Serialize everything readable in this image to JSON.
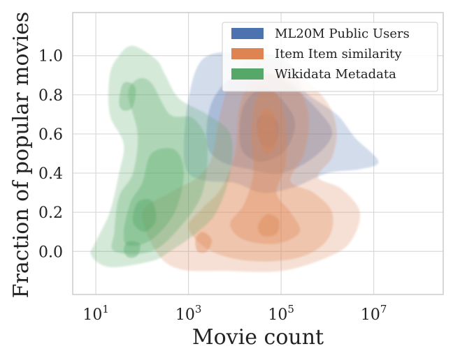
{
  "chart_data": {
    "type": "kde-contour",
    "xlabel": "Movie count",
    "ylabel": "Fraction of popular movies",
    "x_scale": "log10",
    "xlim_log10": [
      0.5,
      8.5
    ],
    "ylim": [
      -0.22,
      1.22
    ],
    "grid": true,
    "legend_position": "top-right",
    "x_ticks": [
      {
        "base": "10",
        "exp": "1",
        "value_log10": 1
      },
      {
        "base": "10",
        "exp": "3",
        "value_log10": 3
      },
      {
        "base": "10",
        "exp": "5",
        "value_log10": 5
      },
      {
        "base": "10",
        "exp": "7",
        "value_log10": 7
      }
    ],
    "x_gridlines_log10": [
      1,
      3,
      5,
      7
    ],
    "y_ticks": [
      {
        "label": "0.0",
        "value": 0.0
      },
      {
        "label": "0.2",
        "value": 0.2
      },
      {
        "label": "0.4",
        "value": 0.4
      },
      {
        "label": "0.6",
        "value": 0.6
      },
      {
        "label": "0.8",
        "value": 0.8
      },
      {
        "label": "1.0",
        "value": 1.0
      }
    ],
    "series": [
      {
        "name": "ML20M Public Users",
        "color": "#4C72B0",
        "peaks": [
          {
            "x_log10": 4.7,
            "y": 0.6
          }
        ],
        "levels": [
          {
            "opacity": 0.25,
            "outline": [
              [
                2.9,
                0.52
              ],
              [
                3.0,
                0.78
              ],
              [
                3.3,
                0.98
              ],
              [
                4.0,
                1.02
              ],
              [
                4.9,
                1.0
              ],
              [
                5.3,
                0.93
              ],
              [
                5.5,
                0.82
              ],
              [
                6.2,
                0.7
              ],
              [
                6.6,
                0.58
              ],
              [
                7.1,
                0.46
              ],
              [
                6.7,
                0.42
              ],
              [
                6.0,
                0.4
              ],
              [
                5.3,
                0.33
              ],
              [
                4.6,
                0.3
              ],
              [
                4.0,
                0.35
              ],
              [
                3.4,
                0.36
              ],
              [
                3.0,
                0.4
              ]
            ]
          },
          {
            "opacity": 0.3,
            "outline": [
              [
                3.4,
                0.55
              ],
              [
                3.5,
                0.76
              ],
              [
                4.0,
                0.9
              ],
              [
                4.6,
                0.92
              ],
              [
                5.2,
                0.85
              ],
              [
                5.8,
                0.72
              ],
              [
                6.1,
                0.6
              ],
              [
                5.7,
                0.48
              ],
              [
                5.0,
                0.4
              ],
              [
                4.3,
                0.42
              ],
              [
                3.7,
                0.46
              ]
            ]
          },
          {
            "opacity": 0.35,
            "outline": [
              [
                4.1,
                0.6
              ],
              [
                4.2,
                0.75
              ],
              [
                4.6,
                0.84
              ],
              [
                5.0,
                0.78
              ],
              [
                5.3,
                0.66
              ],
              [
                5.1,
                0.52
              ],
              [
                4.6,
                0.46
              ],
              [
                4.2,
                0.5
              ]
            ]
          },
          {
            "opacity": 0.4,
            "outline": [
              [
                4.5,
                0.6
              ],
              [
                4.5,
                0.68
              ],
              [
                4.75,
                0.7
              ],
              [
                4.95,
                0.64
              ],
              [
                4.85,
                0.54
              ],
              [
                4.6,
                0.54
              ]
            ]
          }
        ]
      },
      {
        "name": "Item Item similarity",
        "color": "#DD8452",
        "peaks": [
          {
            "x_log10": 4.8,
            "y": 0.12
          },
          {
            "x_log10": 4.7,
            "y": 0.6
          }
        ],
        "levels": [
          {
            "opacity": 0.25,
            "outline": [
              [
                2.0,
                0.2
              ],
              [
                2.3,
                0.0
              ],
              [
                2.8,
                -0.09
              ],
              [
                3.8,
                -0.1
              ],
              [
                5.0,
                -0.1
              ],
              [
                6.0,
                -0.03
              ],
              [
                6.5,
                0.05
              ],
              [
                6.7,
                0.2
              ],
              [
                6.3,
                0.32
              ],
              [
                5.8,
                0.38
              ],
              [
                6.1,
                0.48
              ],
              [
                6.2,
                0.62
              ],
              [
                6.0,
                0.76
              ],
              [
                5.5,
                0.88
              ],
              [
                5.0,
                0.97
              ],
              [
                4.5,
                0.98
              ],
              [
                4.0,
                0.92
              ],
              [
                3.7,
                0.72
              ],
              [
                3.5,
                0.48
              ],
              [
                3.2,
                0.38
              ],
              [
                2.6,
                0.3
              ]
            ]
          },
          {
            "opacity": 0.3,
            "outline": [
              [
                3.0,
                0.12
              ],
              [
                3.5,
                0.0
              ],
              [
                4.4,
                -0.05
              ],
              [
                5.4,
                -0.03
              ],
              [
                6.0,
                0.06
              ],
              [
                6.1,
                0.2
              ],
              [
                5.7,
                0.3
              ],
              [
                5.2,
                0.36
              ],
              [
                5.5,
                0.5
              ],
              [
                5.6,
                0.68
              ],
              [
                5.4,
                0.82
              ],
              [
                4.9,
                0.9
              ],
              [
                4.4,
                0.88
              ],
              [
                4.1,
                0.74
              ],
              [
                4.0,
                0.5
              ],
              [
                3.7,
                0.32
              ],
              [
                3.3,
                0.22
              ]
            ]
          },
          {
            "opacity": 0.35,
            "outline": [
              [
                3.9,
                0.14
              ],
              [
                4.2,
                0.06
              ],
              [
                4.9,
                0.04
              ],
              [
                5.4,
                0.1
              ],
              [
                5.2,
                0.2
              ],
              [
                4.9,
                0.3
              ],
              [
                5.1,
                0.45
              ],
              [
                5.1,
                0.65
              ],
              [
                4.9,
                0.8
              ],
              [
                4.5,
                0.8
              ],
              [
                4.35,
                0.6
              ],
              [
                4.4,
                0.4
              ],
              [
                4.2,
                0.24
              ]
            ]
          },
          {
            "opacity": 0.4,
            "outline": [
              [
                4.5,
                0.13
              ],
              [
                4.6,
                0.08
              ],
              [
                4.9,
                0.09
              ],
              [
                4.95,
                0.16
              ],
              [
                4.7,
                0.19
              ]
            ]
          },
          {
            "opacity": 0.4,
            "outline": [
              [
                4.5,
                0.6
              ],
              [
                4.6,
                0.72
              ],
              [
                4.85,
                0.7
              ],
              [
                4.9,
                0.56
              ],
              [
                4.7,
                0.5
              ]
            ]
          },
          {
            "opacity": 0.4,
            "outline": [
              [
                3.15,
                0.06
              ],
              [
                3.3,
                0.1
              ],
              [
                3.5,
                0.06
              ],
              [
                3.4,
                0.0
              ],
              [
                3.2,
                0.0
              ]
            ]
          }
        ]
      },
      {
        "name": "Wikidata Metadata",
        "color": "#55A868",
        "peaks": [
          {
            "x_log10": 1.8,
            "y": 0.02
          },
          {
            "x_log10": 2.0,
            "y": 0.2
          }
        ],
        "levels": [
          {
            "opacity": 0.25,
            "outline": [
              [
                1.0,
                0.05
              ],
              [
                0.9,
                -0.02
              ],
              [
                1.3,
                -0.08
              ],
              [
                2.2,
                -0.05
              ],
              [
                2.6,
                0.0
              ],
              [
                3.2,
                0.1
              ],
              [
                3.6,
                0.2
              ],
              [
                3.9,
                0.4
              ],
              [
                3.9,
                0.6
              ],
              [
                3.4,
                0.7
              ],
              [
                2.8,
                0.78
              ],
              [
                2.5,
                0.9
              ],
              [
                2.3,
                0.98
              ],
              [
                1.8,
                1.05
              ],
              [
                1.5,
                1.0
              ],
              [
                1.3,
                0.9
              ],
              [
                1.3,
                0.7
              ],
              [
                1.6,
                0.55
              ],
              [
                1.5,
                0.4
              ],
              [
                1.3,
                0.2
              ]
            ]
          },
          {
            "opacity": 0.3,
            "outline": [
              [
                1.4,
                0.1
              ],
              [
                1.4,
                0.0
              ],
              [
                2.2,
                0.0
              ],
              [
                2.8,
                0.12
              ],
              [
                3.3,
                0.3
              ],
              [
                3.4,
                0.55
              ],
              [
                3.1,
                0.68
              ],
              [
                2.6,
                0.7
              ],
              [
                2.2,
                0.86
              ],
              [
                1.9,
                0.88
              ],
              [
                1.7,
                0.8
              ],
              [
                1.9,
                0.6
              ],
              [
                1.8,
                0.4
              ],
              [
                1.5,
                0.28
              ]
            ]
          },
          {
            "opacity": 0.35,
            "outline": [
              [
                1.6,
                0.1
              ],
              [
                1.7,
                0.03
              ],
              [
                2.2,
                0.06
              ],
              [
                2.7,
                0.2
              ],
              [
                2.9,
                0.4
              ],
              [
                2.7,
                0.52
              ],
              [
                2.2,
                0.5
              ],
              [
                2.0,
                0.35
              ],
              [
                1.75,
                0.25
              ]
            ]
          },
          {
            "opacity": 0.4,
            "outline": [
              [
                1.6,
                0.01
              ],
              [
                1.7,
                0.05
              ],
              [
                1.95,
                0.04
              ],
              [
                1.9,
                -0.02
              ],
              [
                1.7,
                -0.03
              ]
            ]
          },
          {
            "opacity": 0.4,
            "outline": [
              [
                1.8,
                0.15
              ],
              [
                1.9,
                0.25
              ],
              [
                2.2,
                0.26
              ],
              [
                2.3,
                0.16
              ],
              [
                2.05,
                0.1
              ]
            ]
          },
          {
            "opacity": 0.35,
            "outline": [
              [
                1.5,
                0.76
              ],
              [
                1.6,
                0.86
              ],
              [
                1.85,
                0.84
              ],
              [
                1.8,
                0.74
              ],
              [
                1.6,
                0.72
              ]
            ]
          }
        ]
      }
    ]
  }
}
